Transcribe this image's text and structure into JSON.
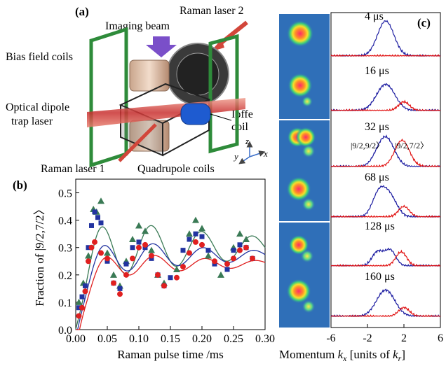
{
  "panel_a": {
    "label": "(a)",
    "labels": {
      "raman2": "Raman laser 2",
      "imaging": "Imaging beam",
      "bias": "Bias field coils",
      "dipole1": "Optical dipole",
      "dipole2": "trap laser",
      "ioffe1": "Ioffe",
      "ioffe2": "coil",
      "raman1": "Raman laser 1",
      "quad": "Quadrupole coils",
      "ax_x": "x",
      "ax_y": "y",
      "ax_z": "z"
    }
  },
  "panel_c": {
    "label": "(c)",
    "times": [
      "4 μs",
      "16 μs",
      "32 μs",
      "68 μs",
      "128 μs",
      "160 μs"
    ],
    "state1": "|9/2,9/2〉",
    "state2": "|9/2,7/2〉",
    "xticks": [
      "-6",
      "-2",
      "2",
      "6"
    ],
    "xlabel_a": "Momentum ",
    "xlabel_k": "k",
    "xlabel_sub": "x",
    "xlabel_b": " [units of ",
    "xlabel_k2": "k",
    "xlabel_sub2": "r",
    "xlabel_c": "]",
    "colors": {
      "blue": "#1a1aa0",
      "red": "#e01010",
      "bg": "#2f6fb8"
    }
  },
  "chart_data": {
    "type": "scatter",
    "label": "(b)",
    "xlabel": "Raman pulse time /ms",
    "ylabel": "Fraction of |9/2,7/2〉",
    "xlim": [
      0,
      0.3
    ],
    "ylim": [
      0,
      0.55
    ],
    "xticks": [
      "0.00",
      "0.05",
      "0.10",
      "0.15",
      "0.20",
      "0.25",
      "0.30"
    ],
    "yticks": [
      "0.0",
      "0.1",
      "0.2",
      "0.3",
      "0.4",
      "0.5"
    ],
    "series": [
      {
        "marker": "triangle",
        "color": "#3a7a55",
        "x": [
          0.005,
          0.012,
          0.02,
          0.028,
          0.033,
          0.04,
          0.05,
          0.06,
          0.07,
          0.08,
          0.09,
          0.1,
          0.11,
          0.12,
          0.13,
          0.14,
          0.16,
          0.18,
          0.19,
          0.2,
          0.21,
          0.23,
          0.25,
          0.26,
          0.27
        ],
        "y": [
          0.1,
          0.17,
          0.27,
          0.44,
          0.43,
          0.47,
          0.28,
          0.2,
          0.16,
          0.25,
          0.33,
          0.38,
          0.36,
          0.29,
          0.2,
          0.17,
          0.22,
          0.35,
          0.4,
          0.37,
          0.27,
          0.2,
          0.3,
          0.35,
          0.33
        ]
      },
      {
        "marker": "square",
        "color": "#2233a0",
        "x": [
          0.005,
          0.01,
          0.015,
          0.02,
          0.025,
          0.03,
          0.035,
          0.04,
          0.05,
          0.06,
          0.07,
          0.08,
          0.09,
          0.1,
          0.11,
          0.12,
          0.13,
          0.14,
          0.15,
          0.17,
          0.18,
          0.19,
          0.2,
          0.21,
          0.22,
          0.24,
          0.25,
          0.26,
          0.27,
          0.28
        ],
        "y": [
          0.08,
          0.12,
          0.16,
          0.3,
          0.38,
          0.43,
          0.41,
          0.39,
          0.25,
          0.17,
          0.15,
          0.24,
          0.3,
          0.32,
          0.3,
          0.26,
          0.2,
          0.16,
          0.19,
          0.29,
          0.33,
          0.35,
          0.34,
          0.29,
          0.24,
          0.22,
          0.29,
          0.31,
          0.3,
          0.26
        ]
      },
      {
        "marker": "circle",
        "color": "#e02020",
        "x": [
          0.005,
          0.01,
          0.015,
          0.02,
          0.025,
          0.03,
          0.04,
          0.05,
          0.06,
          0.07,
          0.08,
          0.09,
          0.1,
          0.11,
          0.12,
          0.13,
          0.14,
          0.16,
          0.17,
          0.18,
          0.19,
          0.2,
          0.22,
          0.24,
          0.25,
          0.26,
          0.27,
          0.28
        ],
        "y": [
          0.05,
          0.08,
          0.14,
          0.25,
          0.3,
          0.32,
          0.28,
          0.26,
          0.17,
          0.13,
          0.2,
          0.26,
          0.3,
          0.31,
          0.27,
          0.2,
          0.16,
          0.19,
          0.23,
          0.28,
          0.32,
          0.31,
          0.25,
          0.24,
          0.26,
          0.29,
          0.3,
          0.26
        ]
      }
    ],
    "fits": [
      {
        "color": "#3a7a55",
        "amp": 0.43,
        "damp": 4.0,
        "off": 0.3,
        "period": 0.08,
        "shift": 0.0
      },
      {
        "color": "#2233a0",
        "amp": 0.35,
        "damp": 5.0,
        "off": 0.27,
        "period": 0.08,
        "shift": 0.003
      },
      {
        "color": "#e02020",
        "amp": 0.3,
        "damp": 5.5,
        "off": 0.24,
        "period": 0.08,
        "shift": 0.006
      }
    ]
  }
}
